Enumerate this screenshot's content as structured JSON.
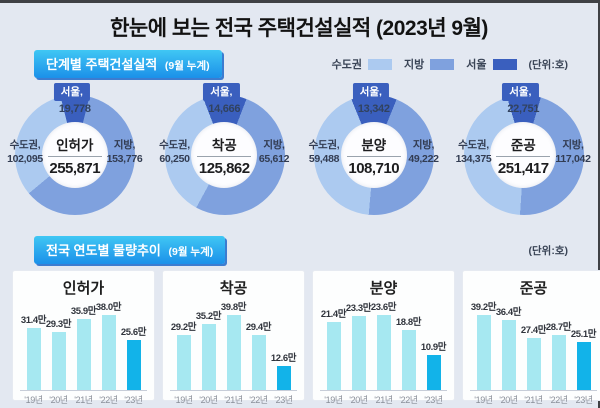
{
  "page": {
    "title": "한눈에 보는 전국 주택건설실적 (2023년 9월)"
  },
  "sections": [
    {
      "title": "단계별 주택건설실적",
      "subtitle": "(9월 누계)",
      "unit": "(단위:호)"
    },
    {
      "title": "전국 연도별 물량추이",
      "subtitle": "(9월 누계)",
      "unit": "(단위:호)"
    }
  ],
  "legend": {
    "items": [
      {
        "label": "수도권",
        "color": "#accaf0"
      },
      {
        "label": "지방",
        "color": "#7fa1de"
      },
      {
        "label": "서울",
        "color": "#3a5fbe"
      }
    ]
  },
  "colors": {
    "seoul": "#3a5fbe",
    "jibang": "#7fa1de",
    "sudogwon": "#accaf0",
    "bar": "#a6e8f1",
    "bar_highlight": "#12b3e9"
  },
  "chart_data": [
    {
      "type": "pie",
      "title": "인허가",
      "center_value": "255,871",
      "total": 255871,
      "segments": [
        {
          "name": "seoul",
          "label": "서울,",
          "display": "19,778",
          "value": 19778
        },
        {
          "name": "sudogwon",
          "label": "수도권,",
          "display": "102,095",
          "value": 102095
        },
        {
          "name": "jibang",
          "label": "지방,",
          "display": "153,776",
          "value": 153776
        }
      ]
    },
    {
      "type": "pie",
      "title": "착공",
      "center_value": "125,862",
      "total": 125862,
      "segments": [
        {
          "name": "seoul",
          "label": "서울,",
          "display": "14,666",
          "value": 14666
        },
        {
          "name": "sudogwon",
          "label": "수도권,",
          "display": "60,250",
          "value": 60250
        },
        {
          "name": "jibang",
          "label": "지방,",
          "display": "65,612",
          "value": 65612
        }
      ]
    },
    {
      "type": "pie",
      "title": "분양",
      "center_value": "108,710",
      "total": 108710,
      "segments": [
        {
          "name": "seoul",
          "label": "서울,",
          "display": "13,342",
          "value": 13342
        },
        {
          "name": "sudogwon",
          "label": "수도권,",
          "display": "59,488",
          "value": 59488
        },
        {
          "name": "jibang",
          "label": "지방,",
          "display": "49,222",
          "value": 49222
        }
      ]
    },
    {
      "type": "pie",
      "title": "준공",
      "center_value": "251,417",
      "total": 251417,
      "segments": [
        {
          "name": "seoul",
          "label": "서울,",
          "display": "22,751",
          "value": 22751
        },
        {
          "name": "sudogwon",
          "label": "수도권,",
          "display": "134,375",
          "value": 134375
        },
        {
          "name": "jibang",
          "label": "지방,",
          "display": "117,042",
          "value": 117042
        }
      ]
    },
    {
      "type": "bar",
      "title": "인허가",
      "categories": [
        "'19년",
        "'20년",
        "'21년",
        "'22년",
        "'23년"
      ],
      "values": [
        31.4,
        29.3,
        35.9,
        38.0,
        25.6
      ],
      "data_labels": [
        "31.4만",
        "29.3만",
        "35.9만",
        "38.0만",
        "25.6만"
      ],
      "highlight_index": 4
    },
    {
      "type": "bar",
      "title": "착공",
      "categories": [
        "'19년",
        "'20년",
        "'21년",
        "'22년",
        "'23년"
      ],
      "values": [
        29.2,
        35.2,
        39.8,
        29.4,
        12.6
      ],
      "data_labels": [
        "29.2만",
        "35.2만",
        "39.8만",
        "29.4만",
        "12.6만"
      ],
      "highlight_index": 4
    },
    {
      "type": "bar",
      "title": "분양",
      "categories": [
        "'19년",
        "'20년",
        "'21년",
        "'22년",
        "'23년"
      ],
      "values": [
        21.4,
        23.3,
        23.6,
        18.8,
        10.9
      ],
      "data_labels": [
        "21.4만",
        "23.3만",
        "23.6만",
        "18.8만",
        "10.9만"
      ],
      "highlight_index": 4
    },
    {
      "type": "bar",
      "title": "준공",
      "categories": [
        "'19년",
        "'20년",
        "'21년",
        "'22년",
        "'23년"
      ],
      "values": [
        39.2,
        36.4,
        27.4,
        28.7,
        25.1
      ],
      "data_labels": [
        "39.2만",
        "36.4만",
        "27.4만",
        "28.7만",
        "25.1만"
      ],
      "highlight_index": 4
    }
  ]
}
